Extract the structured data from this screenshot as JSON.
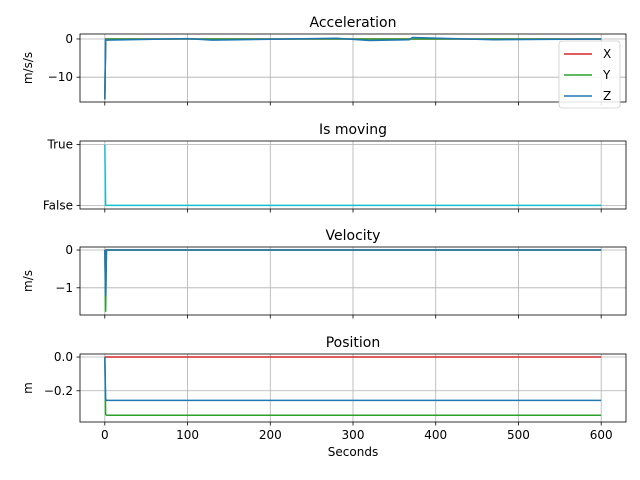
{
  "chart_data": [
    {
      "type": "line",
      "title": "Acceleration",
      "xlabel": "",
      "ylabel": "m/s/s",
      "xlim": [
        -30,
        630
      ],
      "ylim": [
        -16.5,
        1.3
      ],
      "x_ticks": [
        0,
        100,
        200,
        300,
        400,
        500,
        600
      ],
      "y_ticks": [
        0,
        -10
      ],
      "y_tick_labels": [
        "0",
        "−10"
      ],
      "grid": true,
      "legend": "top-right",
      "series": [
        {
          "name": "X",
          "color": "#d62728",
          "x": [
            0,
            1,
            600
          ],
          "y": [
            -15.8,
            0.0,
            0.0
          ]
        },
        {
          "name": "Y",
          "color": "#2ca02c",
          "x": [
            0,
            1,
            600
          ],
          "y": [
            -15.8,
            0.0,
            0.0
          ]
        },
        {
          "name": "Z",
          "color": "#1f77b4",
          "x": [
            0,
            1,
            2,
            100,
            130,
            280,
            320,
            368,
            372,
            470,
            600
          ],
          "y": [
            -15.8,
            0.0,
            -0.3,
            0.1,
            -0.3,
            0.2,
            -0.4,
            -0.2,
            0.4,
            -0.2,
            0.0
          ]
        }
      ]
    },
    {
      "type": "line",
      "title": "Is moving",
      "xlabel": "",
      "ylabel": "",
      "xlim": [
        -30,
        630
      ],
      "ylim": [
        -0.06,
        1.06
      ],
      "x_ticks": [
        0,
        100,
        200,
        300,
        400,
        500,
        600
      ],
      "y_ticks": [
        1,
        0
      ],
      "y_tick_labels": [
        "True",
        "False"
      ],
      "grid": true,
      "series": [
        {
          "color": "#17becf",
          "x": [
            0,
            1,
            600
          ],
          "y": [
            1,
            0,
            0
          ]
        }
      ]
    },
    {
      "type": "line",
      "title": "Velocity",
      "xlabel": "",
      "ylabel": "m/s",
      "xlim": [
        -30,
        630
      ],
      "ylim": [
        -1.72,
        0.08
      ],
      "x_ticks": [
        0,
        100,
        200,
        300,
        400,
        500,
        600
      ],
      "y_ticks": [
        0,
        -1
      ],
      "y_tick_labels": [
        "0",
        "−1"
      ],
      "grid": true,
      "series": [
        {
          "color": "#d62728",
          "x": [
            0,
            1,
            600
          ],
          "y": [
            0.0,
            0.0,
            0.0
          ]
        },
        {
          "color": "#2ca02c",
          "x": [
            0,
            1,
            2,
            600
          ],
          "y": [
            0.0,
            -1.62,
            0.0,
            0.0
          ]
        },
        {
          "color": "#1f77b4",
          "x": [
            0,
            1,
            2,
            600
          ],
          "y": [
            0.0,
            -1.2,
            0.0,
            0.0
          ]
        }
      ]
    },
    {
      "type": "line",
      "title": "Position",
      "xlabel": "Seconds",
      "ylabel": "m",
      "xlim": [
        -30,
        630
      ],
      "ylim": [
        -0.385,
        0.018
      ],
      "x_ticks": [
        0,
        100,
        200,
        300,
        400,
        500,
        600
      ],
      "y_ticks": [
        0.0,
        -0.2
      ],
      "y_tick_labels": [
        "0.0",
        "−0.2"
      ],
      "grid": true,
      "series": [
        {
          "color": "#d62728",
          "x": [
            0,
            600
          ],
          "y": [
            0.0,
            0.0
          ]
        },
        {
          "color": "#2ca02c",
          "x": [
            0,
            1,
            2,
            600
          ],
          "y": [
            0.0,
            -0.34,
            -0.345,
            -0.345
          ]
        },
        {
          "color": "#1f77b4",
          "x": [
            0,
            1,
            2,
            600
          ],
          "y": [
            0.0,
            -0.25,
            -0.257,
            -0.257
          ]
        }
      ]
    }
  ]
}
